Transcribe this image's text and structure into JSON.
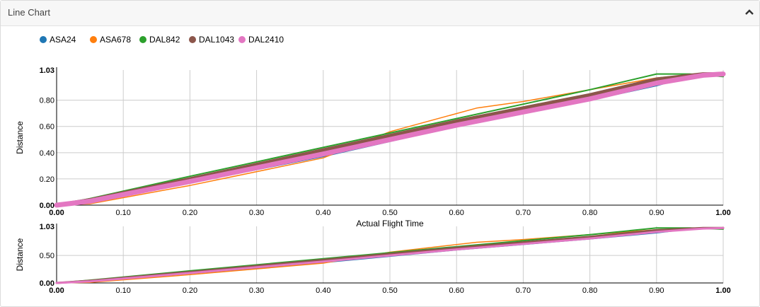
{
  "panel": {
    "title": "Line Chart",
    "collapse_icon": "chevron-up-icon"
  },
  "legend_items": [
    {
      "label": "ASA24",
      "color": "#1f77b4"
    },
    {
      "label": "ASA678",
      "color": "#ff7f0e"
    },
    {
      "label": "DAL842",
      "color": "#2ca02c"
    },
    {
      "label": "DAL1043",
      "color": "#8c564b"
    },
    {
      "label": "DAL2410",
      "color": "#e377c2"
    }
  ],
  "chart_data": [
    {
      "type": "line",
      "title": "",
      "xlabel": "Actual Flight Time",
      "ylabel": "Distance",
      "xlim": [
        0,
        1
      ],
      "ylim": [
        0,
        1.03
      ],
      "grid": true,
      "legend_position": "top-left",
      "xticks": [
        "0.00",
        "0.10",
        "0.20",
        "0.30",
        "0.40",
        "0.50",
        "0.60",
        "0.70",
        "0.80",
        "0.90",
        "1.00"
      ],
      "yticks": [
        {
          "v": 0,
          "l": "0.00"
        },
        {
          "v": 0.2,
          "l": "0.20"
        },
        {
          "v": 0.4,
          "l": "0.40"
        },
        {
          "v": 0.6,
          "l": "0.60"
        },
        {
          "v": 0.8,
          "l": "0.80"
        },
        {
          "v": 1.03,
          "l": "1.03"
        }
      ],
      "series": [
        {
          "name": "ASA24",
          "color": "#1f77b4",
          "x": [
            0,
            0.05,
            0.2,
            0.4,
            0.6,
            0.8,
            0.9,
            0.95,
            1
          ],
          "y": [
            0,
            0.02,
            0.17,
            0.37,
            0.6,
            0.8,
            0.91,
            0.98,
            1
          ]
        },
        {
          "name": "ASA678",
          "color": "#ff7f0e",
          "x": [
            0,
            0.05,
            0.2,
            0.4,
            0.5,
            0.63,
            0.7,
            0.9,
            0.96,
            1
          ],
          "y": [
            0,
            0.01,
            0.15,
            0.36,
            0.56,
            0.74,
            0.79,
            0.97,
            1,
            1
          ]
        },
        {
          "name": "DAL842",
          "color": "#2ca02c",
          "x": [
            0,
            0.05,
            0.2,
            0.4,
            0.6,
            0.8,
            0.9,
            0.95,
            1
          ],
          "y": [
            0,
            0.05,
            0.22,
            0.44,
            0.66,
            0.88,
            1.0,
            1.0,
            0.98
          ]
        },
        {
          "name": "DAL1043",
          "color": "#8c564b",
          "x": [
            0,
            0.05,
            0.2,
            0.4,
            0.6,
            0.8,
            0.9,
            0.97,
            1
          ],
          "y": [
            0,
            0.04,
            0.2,
            0.42,
            0.64,
            0.84,
            0.96,
            1,
            1
          ]
        },
        {
          "name": "DAL2410",
          "color": "#e377c2",
          "x": [
            0,
            0.05,
            0.2,
            0.4,
            0.6,
            0.8,
            0.9,
            0.97,
            1
          ],
          "y": [
            0,
            0.03,
            0.18,
            0.39,
            0.61,
            0.81,
            0.93,
            0.99,
            1
          ]
        }
      ]
    },
    {
      "type": "line",
      "title": "",
      "xlabel": "",
      "ylabel": "Distance",
      "xlim": [
        0,
        1
      ],
      "ylim": [
        0,
        1.03
      ],
      "grid": true,
      "xticks": [
        "0.00",
        "0.10",
        "0.20",
        "0.30",
        "0.40",
        "0.50",
        "0.60",
        "0.70",
        "0.80",
        "0.90",
        "1.00"
      ],
      "yticks": [
        {
          "v": 0,
          "l": "0.00"
        },
        {
          "v": 0.5,
          "l": "0.50"
        },
        {
          "v": 1.03,
          "l": "1.03"
        }
      ],
      "series": [
        {
          "name": "ASA24",
          "color": "#1f77b4",
          "x": [
            0,
            0.05,
            0.2,
            0.4,
            0.6,
            0.8,
            0.9,
            0.95,
            1
          ],
          "y": [
            0,
            0.02,
            0.17,
            0.37,
            0.6,
            0.8,
            0.91,
            0.98,
            1
          ]
        },
        {
          "name": "ASA678",
          "color": "#ff7f0e",
          "x": [
            0,
            0.05,
            0.2,
            0.4,
            0.5,
            0.63,
            0.7,
            0.9,
            0.96,
            1
          ],
          "y": [
            0,
            0.01,
            0.15,
            0.36,
            0.56,
            0.74,
            0.79,
            0.97,
            1,
            1
          ]
        },
        {
          "name": "DAL842",
          "color": "#2ca02c",
          "x": [
            0,
            0.05,
            0.2,
            0.4,
            0.6,
            0.8,
            0.9,
            0.95,
            1
          ],
          "y": [
            0,
            0.05,
            0.22,
            0.44,
            0.66,
            0.88,
            1.0,
            1.0,
            0.98
          ]
        },
        {
          "name": "DAL1043",
          "color": "#8c564b",
          "x": [
            0,
            0.05,
            0.2,
            0.4,
            0.6,
            0.8,
            0.9,
            0.97,
            1
          ],
          "y": [
            0,
            0.04,
            0.2,
            0.42,
            0.64,
            0.84,
            0.96,
            1,
            1
          ]
        },
        {
          "name": "DAL2410",
          "color": "#e377c2",
          "x": [
            0,
            0.05,
            0.2,
            0.4,
            0.6,
            0.8,
            0.9,
            0.97,
            1
          ],
          "y": [
            0,
            0.03,
            0.18,
            0.39,
            0.61,
            0.81,
            0.93,
            0.99,
            1
          ]
        }
      ]
    }
  ]
}
